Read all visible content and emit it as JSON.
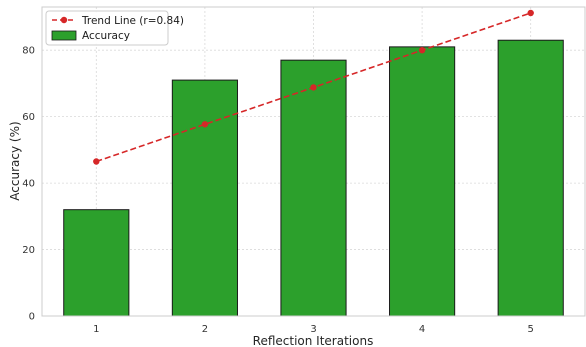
{
  "chart_data": {
    "type": "bar",
    "xlabel": "Reflection Iterations",
    "ylabel": "Accuracy (%)",
    "ylim": [
      0,
      93
    ],
    "yticks": [
      0,
      20,
      40,
      60,
      80
    ],
    "categories": [
      "1",
      "2",
      "3",
      "4",
      "5"
    ],
    "series": [
      {
        "name": "Accuracy",
        "type": "bar",
        "values": [
          32,
          71,
          77,
          81,
          83
        ],
        "color": "#2ca02c"
      },
      {
        "name": "Trend Line (r=0.84)",
        "type": "line",
        "style": "dashed",
        "marker": "circle",
        "values": [
          46.5,
          57.7,
          68.8,
          80.0,
          91.2
        ],
        "color": "#d62728"
      }
    ],
    "grid": true,
    "legend_position": "top-left"
  }
}
